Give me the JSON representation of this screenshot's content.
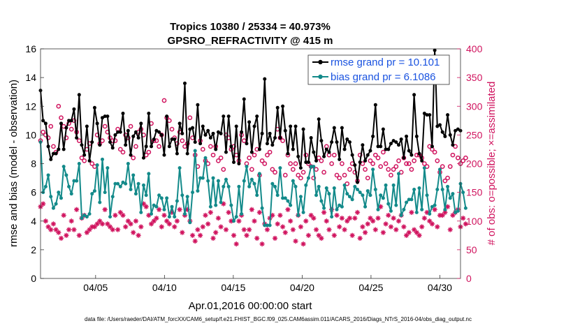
{
  "chart_data": {
    "type": "line",
    "title": "Tropics 10380 / 25334 = 40.973%",
    "subtitle": "GPSRO_REFRACTIVITY @ 415 m",
    "xlabel": "Apr.01,2016 00:00:00 start",
    "ylabel": "rmse and bias (model - observation)",
    "y2label": "# of obs: o=possible; ×=assimilated",
    "footer": "data file: /Users/raeder/DAI/ATM_forcXX/CAM6_setup/f.e21.FHIST_BGC.f09_025.CAM6assim.011/ACARS_2016/Diags_NTrS_2016-04/obs_diag_output.nc",
    "xlim": [
      1,
      31.5
    ],
    "ylim": [
      0,
      16
    ],
    "y2lim": [
      0,
      400
    ],
    "x_ticks": [
      5,
      10,
      15,
      20,
      25,
      30
    ],
    "x_tick_labels": [
      "04/05",
      "04/10",
      "04/15",
      "04/20",
      "04/25",
      "04/30"
    ],
    "y_ticks": [
      0,
      2,
      4,
      6,
      8,
      10,
      12,
      14,
      16
    ],
    "y2_ticks": [
      0,
      50,
      100,
      150,
      200,
      250,
      300,
      350,
      400
    ],
    "colors": {
      "rmse": "#000000",
      "bias": "#138a8a",
      "obs": "#d0135e",
      "legend_text": "#1a53e0"
    },
    "series": [
      {
        "name": "rmse grand pr = 10.101",
        "axis": "left",
        "values": [
          13.1,
          11.0,
          10.8,
          9.2,
          8.3,
          8.7,
          8.7,
          9.0,
          10.8,
          9.0,
          10.5,
          11.0,
          11.0,
          11.8,
          9.8,
          12.8,
          9.3,
          8.6,
          10.6,
          8.2,
          9.5,
          11.9,
          10.8,
          9.3,
          11.2,
          11.3,
          11.3,
          9.5,
          9.1,
          10.0,
          10.2,
          10.2,
          11.5,
          9.3,
          10.3,
          8.6,
          9.9,
          10.2,
          9.8,
          10.8,
          8.4,
          9.2,
          11.5,
          9.2,
          9.7,
          10.3,
          10.2,
          10.0,
          8.6,
          11.3,
          9.2,
          9.7,
          9.7,
          8.7,
          10.8,
          10.1,
          13.6,
          8.7,
          10.4,
          10.5,
          9.5,
          12.1,
          9.4,
          10.6,
          10.0,
          10.3,
          9.8,
          10.1,
          9.0,
          10.2,
          10.1,
          11.3,
          8.8,
          11.3,
          9.2,
          8.1,
          10.6,
          8.0,
          10.2,
          12.5,
          9.4,
          10.9,
          8.8,
          10.6,
          11.3,
          9.0,
          10.1,
          13.9,
          9.4,
          10.1,
          9.3,
          9.8,
          11.9,
          9.8,
          12.0,
          10.3,
          8.7,
          10.6,
          9.0,
          10.6,
          8.5,
          7.7,
          10.4,
          8.1,
          8.1,
          9.8,
          8.8,
          8.2,
          11.1,
          9.6,
          8.5,
          9.0,
          8.8,
          9.5,
          10.5,
          9.5,
          8.3,
          10.5,
          9.0,
          9.7,
          9.5,
          8.6,
          7.9,
          6.7,
          8.1,
          9.3,
          8.2,
          8.6,
          8.9,
          9.9,
          12.1,
          9.2,
          9.2,
          10.4,
          9.0,
          9.0,
          9.4,
          9.6,
          9.5,
          9.3,
          9.7,
          8.4,
          9.9,
          8.9,
          8.6,
          12.8,
          9.9,
          8.7,
          8.2,
          11.5,
          11.4,
          11.4,
          9.2,
          15.9,
          10.6,
          10.7,
          10.2,
          9.9,
          11.4,
          10.0,
          9.3,
          10.3,
          10.4,
          10.3
        ]
      },
      {
        "name": "bias grand pr = 6.1086",
        "axis": "left",
        "values": [
          9.5,
          6.0,
          6.4,
          7.2,
          5.7,
          4.9,
          5.2,
          6.0,
          5.6,
          7.8,
          7.2,
          6.4,
          5.9,
          6.8,
          6.8,
          8.0,
          4.2,
          4.4,
          4.3,
          4.5,
          5.9,
          6.1,
          7.9,
          5.3,
          8.3,
          6.0,
          7.7,
          4.3,
          5.7,
          6.6,
          6.6,
          6.4,
          6.7,
          6.6,
          8.0,
          6.2,
          7.2,
          5.9,
          6.6,
          4.6,
          6.5,
          5.8,
          7.3,
          4.5,
          5.1,
          5.0,
          5.8,
          5.6,
          4.8,
          5.6,
          4.3,
          5.0,
          4.3,
          5.4,
          7.7,
          5.8,
          4.5,
          5.7,
          3.9,
          6.0,
          8.9,
          6.1,
          7.0,
          7.0,
          8.4,
          6.8,
          5.0,
          7.0,
          5.1,
          6.8,
          5.3,
          6.4,
          6.9,
          6.4,
          5.1,
          4.0,
          4.3,
          6.4,
          4.5,
          6.8,
          7.8,
          6.4,
          6.9,
          6.6,
          5.8,
          7.3,
          4.9,
          3.7,
          3.7,
          3.7,
          6.6,
          6.4,
          5.8,
          7.7,
          5.6,
          5.6,
          5.4,
          5.1,
          6.8,
          6.4,
          4.4,
          5.7,
          4.6,
          6.5,
          7.0,
          7.8,
          7.8,
          5.8,
          6.4,
          5.4,
          4.9,
          6.3,
          5.9,
          4.3,
          6.3,
          4.8,
          5.1,
          5.0,
          6.5,
          5.9,
          5.7,
          5.5,
          6.4,
          6.2,
          6.0,
          5.8,
          5.0,
          6.1,
          5.8,
          7.6,
          6.2,
          4.8,
          5.8,
          5.6,
          6.5,
          5.2,
          4.7,
          6.5,
          5.1,
          7.3,
          4.4,
          4.8,
          5.3,
          5.5,
          5.5,
          6.2,
          4.6,
          6.3,
          4.8,
          7.7,
          5.8,
          4.5,
          5.0,
          5.1,
          6.2,
          7.6,
          6.2,
          4.8,
          6.4,
          5.6,
          5.9,
          4.6,
          4.7,
          6.6,
          6.0,
          4.9
        ]
      },
      {
        "name": "possible",
        "axis": "right",
        "values": [
          240,
          255,
          250,
          245,
          265,
          230,
          220,
          300,
          280,
          265,
          245,
          270,
          260,
          275,
          255,
          240,
          210,
          205,
          225,
          235,
          200,
          195,
          250,
          235,
          240,
          265,
          255,
          245,
          240,
          240,
          260,
          225,
          220,
          250,
          245,
          265,
          210,
          230,
          255,
          260,
          250,
          215,
          220,
          270,
          240,
          240,
          230,
          250,
          310,
          280,
          275,
          260,
          245,
          235,
          255,
          240,
          230,
          235,
          280,
          245,
          215,
          195,
          240,
          225,
          205,
          200,
          230,
          215,
          230,
          205,
          210,
          190,
          250,
          245,
          225,
          230,
          215,
          205,
          250,
          240,
          200,
          210,
          190,
          215,
          225,
          180,
          205,
          200,
          215,
          220,
          190,
          185,
          260,
          245,
          240,
          180,
          215,
          200,
          190,
          200,
          180,
          175,
          185,
          215,
          200,
          195,
          175,
          190,
          210,
          205,
          185,
          230,
          215,
          200,
          215,
          180,
          175,
          200,
          180,
          165,
          190,
          200,
          185,
          170,
          215,
          200,
          190,
          175,
          205,
          200,
          215,
          210,
          195,
          220,
          200,
          190,
          180,
          190,
          195,
          205,
          185,
          210,
          200,
          200,
          190,
          205,
          215,
          215,
          210,
          200,
          195,
          230,
          225,
          220,
          205,
          185,
          195,
          170,
          175,
          195,
          215,
          230,
          210,
          200,
          205,
          210
        ]
      },
      {
        "name": "assimilated",
        "axis": "right",
        "values": [
          125,
          130,
          100,
          90,
          85,
          95,
          85,
          80,
          70,
          110,
          75,
          85,
          100,
          85,
          120,
          75,
          105,
          110,
          80,
          85,
          90,
          90,
          95,
          100,
          95,
          120,
          95,
          90,
          85,
          110,
          85,
          115,
          110,
          90,
          100,
          95,
          80,
          100,
          75,
          90,
          130,
          125,
          110,
          95,
          100,
          105,
          120,
          90,
          110,
          100,
          95,
          115,
          90,
          100,
          120,
          80,
          110,
          120,
          100,
          75,
          65,
          85,
          75,
          90,
          110,
          95,
          115,
          70,
          80,
          105,
          90,
          130,
          85,
          115,
          100,
          75,
          60,
          100,
          110,
          85,
          75,
          85,
          120,
          100,
          70,
          115,
          60,
          95,
          85,
          105,
          110,
          70,
          95,
          110,
          90,
          80,
          120,
          100,
          85,
          65,
          110,
          90,
          60,
          100,
          75,
          110,
          105,
          85,
          75,
          70,
          115,
          100,
          85,
          120,
          75,
          110,
          90,
          105,
          85,
          100,
          105,
          75,
          105,
          115,
          70,
          90,
          80,
          95,
          105,
          100,
          85,
          105,
          125,
          80,
          95,
          110,
          90,
          105,
          85,
          100,
          110,
          90,
          75,
          80,
          115,
          85,
          80,
          75,
          90,
          105,
          115,
          100,
          95,
          120,
          90,
          110,
          110,
          115,
          125,
          85,
          110,
          115,
          120,
          90,
          105,
          95
        ]
      }
    ]
  }
}
